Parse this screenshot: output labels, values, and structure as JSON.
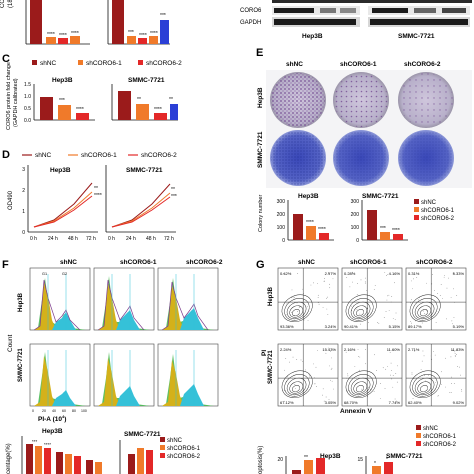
{
  "colors": {
    "shNC": "#9b1b1b",
    "shCORO6_1": "#f07a2a",
    "shCORO6_2": "#e32828",
    "blue": "#2b3fd6",
    "g1": "#d4b11a",
    "s": "#35c1d8",
    "g2": "#3fb64a",
    "purple": "#7b3a8c"
  },
  "panelA": {
    "ylabel": "CORO6 mRNA",
    "ylabel2": "(18S rRNA c",
    "stars": [
      "****",
      "****",
      "****",
      "***",
      "****",
      "****",
      "***"
    ]
  },
  "panelB": {
    "label_coro6": "CORO6",
    "label_gapdh": "GAPDH",
    "cell1": "Hep3B",
    "cell2": "SMMC-7721"
  },
  "panelC": {
    "letter": "C",
    "legend": [
      "shNC",
      "shCORO6-1",
      "shCORO6-2"
    ],
    "ylabel": "CORO6 protein fold change",
    "ylabel2": "(GAPDH calibrated)",
    "cell1": "Hep3B",
    "cell2": "SMMC-7721",
    "yticks": [
      "0.0",
      "0.5",
      "1.0",
      "1.5"
    ],
    "stars_hep": [
      "***",
      "****"
    ],
    "stars_smmc": [
      "**",
      "****",
      "**"
    ]
  },
  "panelD": {
    "letter": "D",
    "legend": [
      "shNC",
      "shCORO6-1",
      "shCORO6-2"
    ],
    "ylabel": "OD490",
    "cell1": "Hep3B",
    "cell2": "SMMC-7721",
    "xticks": [
      "0 h",
      "24 h",
      "48 h",
      "72 h"
    ],
    "yticks": [
      "0",
      "1",
      "2",
      "3"
    ],
    "stars_hep": [
      "**",
      "****"
    ],
    "stars_smmc": [
      "**",
      "***"
    ]
  },
  "panelE": {
    "letter": "E",
    "cols": [
      "shNC",
      "shCORO6-1",
      "shCORO6-2"
    ],
    "rows": [
      "Hep3B",
      "SMMC-7721"
    ],
    "ylabel": "Colony number",
    "cell1": "Hep3B",
    "cell2": "SMMC-7721",
    "yticks": [
      "0",
      "100",
      "200",
      "300"
    ],
    "yticks2": [
      "0",
      "100",
      "200",
      "300"
    ],
    "legend": [
      "shNC",
      "shCORO6-1",
      "shCORO6-2"
    ],
    "stars_hep": [
      "****",
      "****"
    ],
    "stars_smmc": [
      "***",
      "****"
    ]
  },
  "panelF": {
    "letter": "F",
    "cols": [
      "shNC",
      "shCORO6-1",
      "shCORO6-2"
    ],
    "rows": [
      "Hep3B",
      "SMMC-7721"
    ],
    "ylabel": "Count",
    "xlabel": "PI-A (10",
    "xlabel_sup": "4",
    "xlabel_end": ")",
    "gate_g1": "G1",
    "gate_g2": "G2",
    "xticks": [
      "0",
      "20",
      "40",
      "60",
      "80",
      "100"
    ],
    "legend": [
      "shNC",
      "shCORO6-1",
      "shCORO6-2"
    ],
    "bottom_cell1": "Hep3B",
    "bottom_cell2": "SMMC-7721",
    "bottom_ylabel": "centage(%)",
    "stars_bottom": [
      "***",
      "****"
    ]
  },
  "panelG": {
    "letter": "G",
    "cols": [
      "shNC",
      "shCORO6-1",
      "shCORO6-2"
    ],
    "rows": [
      "Hep3B",
      "SMMC-7721"
    ],
    "xlabel": "Annexin V",
    "ylabel": "PI",
    "quadrants": [
      [
        "0.42%",
        "2.97%",
        "0.28%",
        "4.16%",
        "0.31%",
        "5.33%"
      ],
      [
        "93.36%",
        "3.24%",
        "90.41%",
        "5.15%",
        "89.17%",
        "5.19%"
      ],
      [
        "2.24%",
        "15.43%",
        "2.16%",
        "11.60%",
        "2.71%",
        "11.83%"
      ],
      [
        "67.12%",
        "3.05%",
        "68.70%",
        "7.74%",
        "62.40%",
        "9.02%"
      ]
    ],
    "legend": [
      "shNC",
      "shCORO6-1",
      "shCORO6-2"
    ],
    "bottom_cell1": "Hep3B",
    "bottom_cell2": "SMMC-7721",
    "bottom_ylabel": "optosis(%)",
    "bottom_yticks": [
      "20",
      "15"
    ],
    "stars_bottom": [
      "**",
      "*",
      "*"
    ]
  }
}
